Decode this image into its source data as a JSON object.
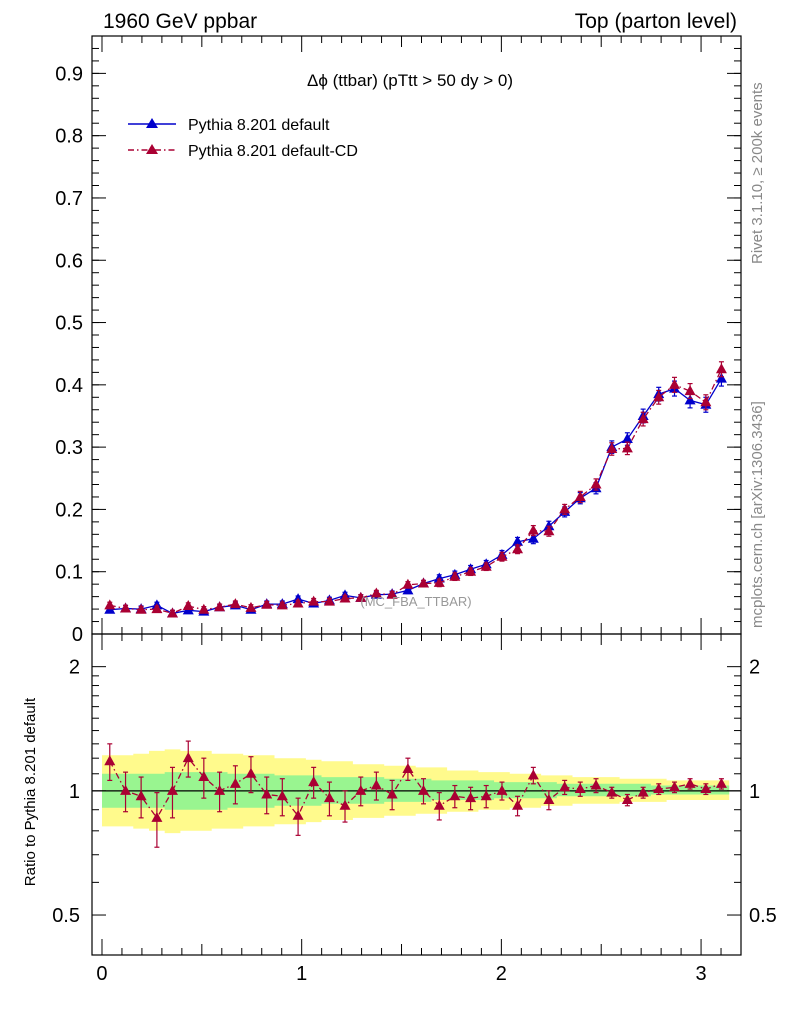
{
  "header": {
    "left": "1960 GeV ppbar",
    "right": "Top (parton level)"
  },
  "side_labels": {
    "rivet": "Rivet 3.1.10, ≥ 200k events",
    "mcplots": "mcplots.cern.ch [arXiv:1306.3436]"
  },
  "watermark": "(MC_FBA_TTBAR)",
  "chart_data": [
    {
      "type": "line",
      "title": "Δϕ (ttbar) (pTtt > 50 dy > 0)",
      "xlabel": "",
      "ylabel": "",
      "xlim": [
        -0.05,
        3.2
      ],
      "ylim": [
        0,
        0.96
      ],
      "yticks": [
        0,
        0.1,
        0.2,
        0.3,
        0.4,
        0.5,
        0.6,
        0.7,
        0.8,
        0.9
      ],
      "ytick_labels": [
        "0",
        "0.1",
        "0.2",
        "0.3",
        "0.4",
        "0.5",
        "0.6",
        "0.7",
        "0.8",
        "0.9"
      ],
      "legend_position": "top-left",
      "x": [
        0.039,
        0.118,
        0.196,
        0.275,
        0.353,
        0.432,
        0.51,
        0.589,
        0.668,
        0.746,
        0.825,
        0.903,
        0.982,
        1.06,
        1.139,
        1.217,
        1.296,
        1.374,
        1.453,
        1.532,
        1.61,
        1.689,
        1.767,
        1.846,
        1.924,
        2.003,
        2.081,
        2.16,
        2.238,
        2.317,
        2.395,
        2.474,
        2.553,
        2.631,
        2.71,
        2.788,
        2.867,
        2.945,
        3.024,
        3.102
      ],
      "series": [
        {
          "name": "Pythia 8.201 default",
          "color": "#0000cc",
          "marker": "triangle",
          "line": "solid",
          "values": [
            0.039,
            0.041,
            0.04,
            0.046,
            0.033,
            0.038,
            0.036,
            0.043,
            0.046,
            0.039,
            0.048,
            0.048,
            0.056,
            0.049,
            0.054,
            0.062,
            0.058,
            0.063,
            0.064,
            0.07,
            0.081,
            0.089,
            0.095,
            0.104,
            0.112,
            0.127,
            0.148,
            0.153,
            0.173,
            0.196,
            0.218,
            0.234,
            0.3,
            0.313,
            0.35,
            0.385,
            0.394,
            0.375,
            0.368,
            0.41
          ],
          "errors": [
            0.005,
            0.005,
            0.005,
            0.005,
            0.005,
            0.005,
            0.005,
            0.005,
            0.005,
            0.005,
            0.005,
            0.005,
            0.005,
            0.005,
            0.005,
            0.005,
            0.005,
            0.005,
            0.005,
            0.005,
            0.005,
            0.006,
            0.006,
            0.006,
            0.006,
            0.007,
            0.007,
            0.008,
            0.008,
            0.008,
            0.009,
            0.009,
            0.01,
            0.01,
            0.011,
            0.011,
            0.012,
            0.012,
            0.012,
            0.012
          ]
        },
        {
          "name": "Pythia 8.201 default-CD",
          "color": "#aa0033",
          "marker": "triangle",
          "line": "dash-dot",
          "values": [
            0.046,
            0.041,
            0.039,
            0.04,
            0.033,
            0.045,
            0.039,
            0.043,
            0.048,
            0.042,
            0.047,
            0.046,
            0.049,
            0.052,
            0.052,
            0.057,
            0.058,
            0.065,
            0.063,
            0.079,
            0.081,
            0.082,
            0.092,
            0.1,
            0.108,
            0.124,
            0.136,
            0.166,
            0.165,
            0.2,
            0.22,
            0.24,
            0.297,
            0.298,
            0.345,
            0.38,
            0.4,
            0.39,
            0.372,
            0.425
          ],
          "errors": [
            0.005,
            0.005,
            0.005,
            0.005,
            0.005,
            0.005,
            0.005,
            0.005,
            0.005,
            0.005,
            0.005,
            0.005,
            0.005,
            0.005,
            0.005,
            0.005,
            0.005,
            0.005,
            0.005,
            0.005,
            0.005,
            0.006,
            0.006,
            0.006,
            0.006,
            0.007,
            0.007,
            0.008,
            0.008,
            0.008,
            0.009,
            0.009,
            0.01,
            0.01,
            0.011,
            0.011,
            0.012,
            0.012,
            0.012,
            0.012
          ]
        }
      ]
    },
    {
      "type": "line",
      "title": "",
      "xlabel": "",
      "ylabel": "Ratio to Pythia 8.201 default",
      "xlim": [
        -0.05,
        3.2
      ],
      "ylim": [
        0.4,
        2.4
      ],
      "log_y": true,
      "yticks": [
        0.5,
        1,
        2
      ],
      "ytick_labels": [
        "0.5",
        "1",
        "2"
      ],
      "xticks": [
        0,
        1,
        2,
        3
      ],
      "xtick_labels": [
        "0",
        "1",
        "2",
        "3"
      ],
      "reference_line": 1,
      "x": [
        0.039,
        0.118,
        0.196,
        0.275,
        0.353,
        0.432,
        0.51,
        0.589,
        0.668,
        0.746,
        0.825,
        0.903,
        0.982,
        1.06,
        1.139,
        1.217,
        1.296,
        1.374,
        1.453,
        1.532,
        1.61,
        1.689,
        1.767,
        1.846,
        1.924,
        2.003,
        2.081,
        2.16,
        2.238,
        2.317,
        2.395,
        2.474,
        2.553,
        2.631,
        2.71,
        2.788,
        2.867,
        2.945,
        3.024,
        3.102
      ],
      "band_inner": {
        "color": "#99f590",
        "lower": [
          0.91,
          0.91,
          0.91,
          0.91,
          0.9,
          0.9,
          0.9,
          0.9,
          0.91,
          0.91,
          0.91,
          0.92,
          0.92,
          0.92,
          0.93,
          0.93,
          0.93,
          0.93,
          0.94,
          0.94,
          0.94,
          0.95,
          0.95,
          0.95,
          0.95,
          0.96,
          0.96,
          0.96,
          0.96,
          0.97,
          0.97,
          0.97,
          0.97,
          0.97,
          0.97,
          0.98,
          0.98,
          0.98,
          0.98,
          0.98
        ],
        "upper": [
          1.1,
          1.1,
          1.1,
          1.1,
          1.11,
          1.11,
          1.11,
          1.11,
          1.1,
          1.1,
          1.1,
          1.09,
          1.09,
          1.09,
          1.08,
          1.08,
          1.08,
          1.08,
          1.07,
          1.07,
          1.07,
          1.06,
          1.06,
          1.06,
          1.06,
          1.05,
          1.05,
          1.05,
          1.05,
          1.04,
          1.04,
          1.04,
          1.04,
          1.04,
          1.04,
          1.03,
          1.03,
          1.03,
          1.03,
          1.03
        ]
      },
      "band_outer": {
        "color": "#fffa8c",
        "lower": [
          0.82,
          0.82,
          0.81,
          0.8,
          0.79,
          0.8,
          0.8,
          0.81,
          0.81,
          0.82,
          0.82,
          0.83,
          0.83,
          0.84,
          0.85,
          0.85,
          0.86,
          0.86,
          0.87,
          0.87,
          0.88,
          0.88,
          0.89,
          0.89,
          0.9,
          0.9,
          0.91,
          0.91,
          0.92,
          0.92,
          0.93,
          0.93,
          0.93,
          0.94,
          0.94,
          0.94,
          0.95,
          0.95,
          0.95,
          0.95
        ],
        "upper": [
          1.22,
          1.22,
          1.23,
          1.25,
          1.26,
          1.25,
          1.25,
          1.23,
          1.23,
          1.22,
          1.22,
          1.2,
          1.2,
          1.19,
          1.18,
          1.18,
          1.16,
          1.16,
          1.15,
          1.15,
          1.14,
          1.14,
          1.12,
          1.12,
          1.11,
          1.11,
          1.1,
          1.1,
          1.09,
          1.09,
          1.08,
          1.08,
          1.08,
          1.07,
          1.07,
          1.07,
          1.06,
          1.06,
          1.06,
          1.06
        ]
      },
      "series": [
        {
          "name": "",
          "color": "#aa0033",
          "marker": "triangle",
          "line": "dash-dot",
          "values": [
            1.18,
            1.0,
            0.97,
            0.86,
            1.0,
            1.2,
            1.08,
            1.0,
            1.04,
            1.1,
            0.98,
            0.97,
            0.87,
            1.05,
            0.96,
            0.92,
            1.0,
            1.03,
            0.98,
            1.13,
            1.0,
            0.92,
            0.97,
            0.96,
            0.97,
            1.0,
            0.92,
            1.09,
            0.95,
            1.02,
            1.01,
            1.03,
            0.99,
            0.95,
            0.99,
            1.01,
            1.02,
            1.04,
            1.01,
            1.04
          ],
          "errors": [
            0.12,
            0.11,
            0.11,
            0.13,
            0.14,
            0.12,
            0.12,
            0.11,
            0.11,
            0.11,
            0.1,
            0.1,
            0.09,
            0.09,
            0.09,
            0.08,
            0.08,
            0.08,
            0.08,
            0.07,
            0.07,
            0.07,
            0.06,
            0.06,
            0.06,
            0.05,
            0.05,
            0.05,
            0.05,
            0.04,
            0.04,
            0.04,
            0.03,
            0.03,
            0.03,
            0.03,
            0.03,
            0.03,
            0.03,
            0.03
          ]
        }
      ]
    }
  ]
}
